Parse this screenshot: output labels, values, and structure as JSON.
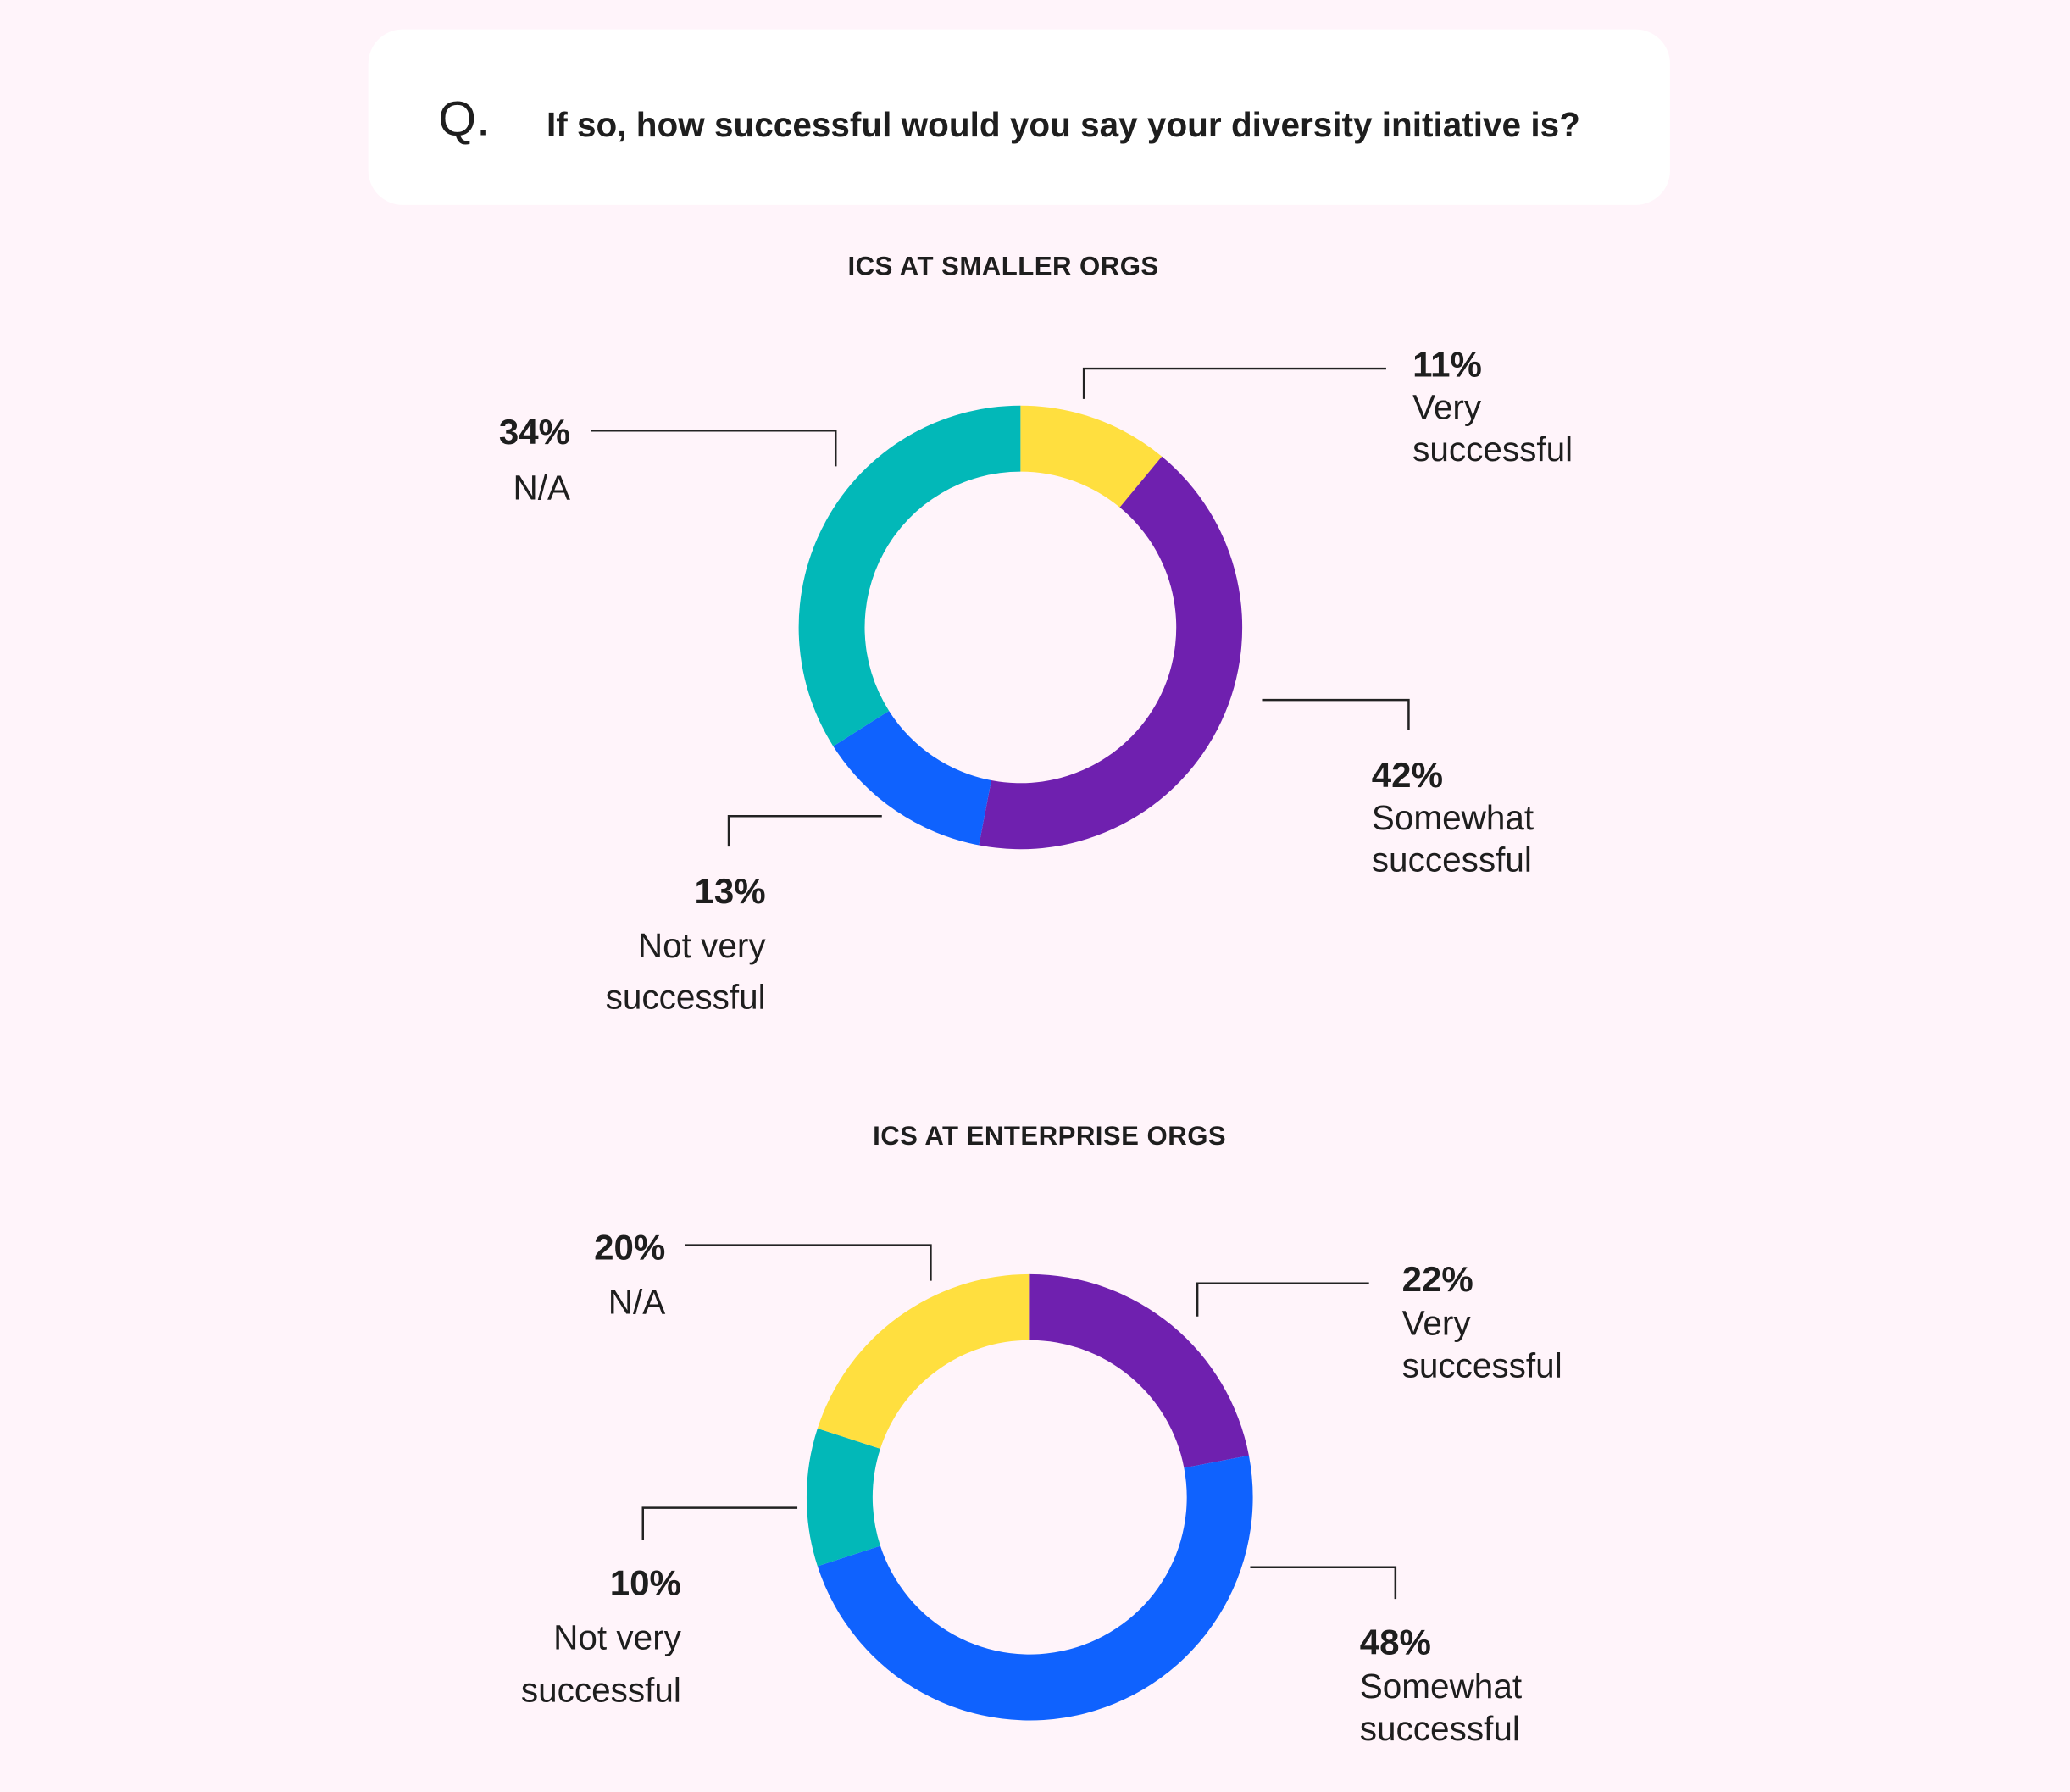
{
  "question": {
    "prefix": "Q.",
    "text": "If so, how successful would you say your diversity initiative is?"
  },
  "colors": {
    "background": "#FFF4FA",
    "card": "#FFFFFF",
    "yellow": "#FFDF3F",
    "purple": "#6F20AF",
    "blue": "#0F62FE",
    "teal": "#02B8B8"
  },
  "chart_data": [
    {
      "type": "pie",
      "donut": true,
      "title": "ICS AT SMALLER ORGS",
      "slices": [
        {
          "value": 11,
          "pct": "11%",
          "label1": "Very",
          "label2": "successful",
          "color": "#FFDF3F"
        },
        {
          "value": 42,
          "pct": "42%",
          "label1": "Somewhat",
          "label2": "successful",
          "color": "#6F20AF"
        },
        {
          "value": 13,
          "pct": "13%",
          "label1": "Not very",
          "label2": "successful",
          "color": "#0F62FE"
        },
        {
          "value": 34,
          "pct": "34%",
          "label1": "N/A",
          "label2": "",
          "color": "#02B8B8"
        }
      ]
    },
    {
      "type": "pie",
      "donut": true,
      "title": "ICS AT ENTERPRISE ORGS",
      "slices": [
        {
          "value": 22,
          "pct": "22%",
          "label1": "Very",
          "label2": "successful",
          "color": "#6F20AF"
        },
        {
          "value": 48,
          "pct": "48%",
          "label1": "Somewhat",
          "label2": "successful",
          "color": "#0F62FE"
        },
        {
          "value": 10,
          "pct": "10%",
          "label1": "Not very",
          "label2": "successful",
          "color": "#02B8B8"
        },
        {
          "value": 20,
          "pct": "20%",
          "label1": "N/A",
          "label2": "",
          "color": "#FFDF3F"
        }
      ]
    }
  ]
}
